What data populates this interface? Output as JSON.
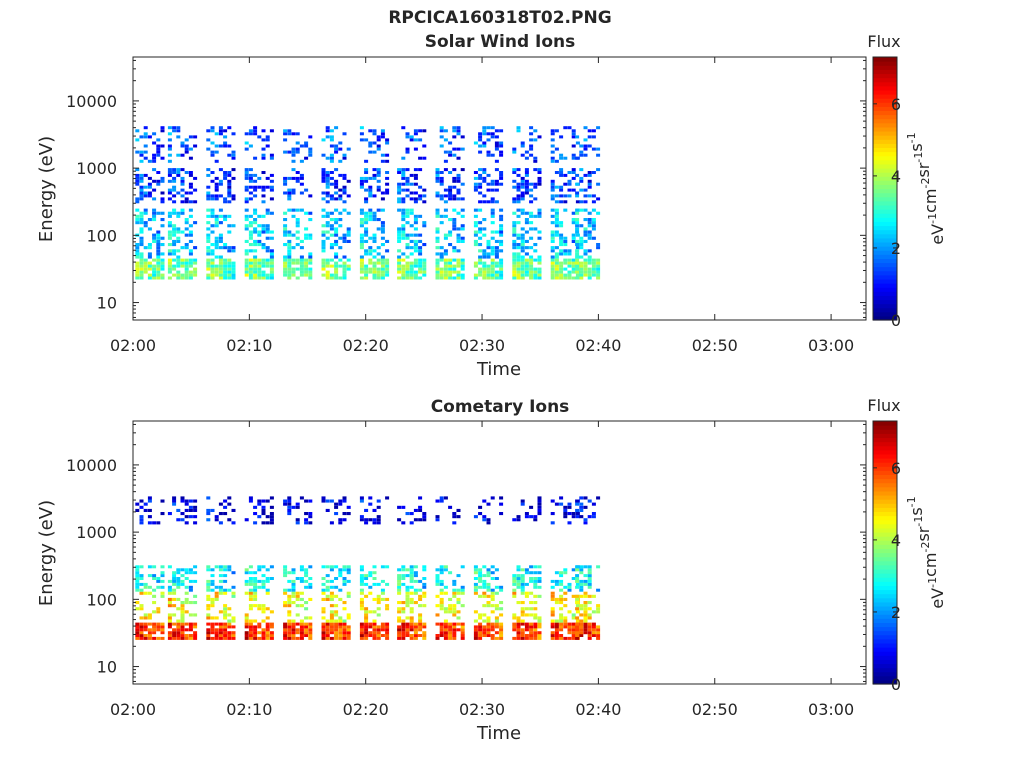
{
  "figure": {
    "file_title": "RPCICA160318T02.PNG"
  },
  "chart_data": [
    {
      "type": "heatmap",
      "title": "Solar Wind Ions",
      "xlabel": "Time",
      "ylabel": "Energy (eV)",
      "y_scale": "log",
      "x_range": [
        "02:00",
        "03:03"
      ],
      "y_range_ev": [
        5.5,
        45000
      ],
      "x_ticks": [
        "02:00",
        "02:10",
        "02:20",
        "02:30",
        "02:40",
        "02:50",
        "03:00"
      ],
      "y_ticks": [
        {
          "value": 10,
          "label": "10"
        },
        {
          "value": 100,
          "label": "100"
        },
        {
          "value": 1000,
          "label": "1000"
        },
        {
          "value": 10000,
          "label": "10000"
        }
      ],
      "colorbar": {
        "title": "Flux",
        "label": "eV⁻¹cm⁻²sr⁻¹s⁻¹",
        "label_parts": [
          "eV",
          "-1",
          "cm",
          "-2",
          "sr",
          "-1",
          "s",
          "-1"
        ],
        "range": [
          0,
          7.3
        ],
        "ticks": [
          0,
          2,
          4,
          6
        ],
        "colormap": "jet"
      },
      "grid": false,
      "data_extent": [
        "02:00",
        "02:40"
      ],
      "sweep_period_min": 3.35,
      "sweep_starts_min": [
        0.2,
        3.0,
        6.3,
        9.6,
        12.9,
        16.2,
        19.5,
        22.7,
        26.0,
        29.3,
        32.6,
        35.9,
        38.0
      ],
      "bands": [
        {
          "energy_ev": [
            22,
            45
          ],
          "typical_flux": 3.8
        },
        {
          "energy_ev": [
            45,
            250
          ],
          "typical_flux": 2.6
        },
        {
          "energy_ev": [
            300,
            1000
          ],
          "typical_flux": 1.6
        },
        {
          "energy_ev": [
            1200,
            4200
          ],
          "typical_flux": 1.8
        }
      ]
    },
    {
      "type": "heatmap",
      "title": "Cometary Ions",
      "xlabel": "Time",
      "ylabel": "Energy (eV)",
      "y_scale": "log",
      "x_range": [
        "02:00",
        "03:03"
      ],
      "y_range_ev": [
        5.5,
        45000
      ],
      "x_ticks": [
        "02:00",
        "02:10",
        "02:20",
        "02:30",
        "02:40",
        "02:50",
        "03:00"
      ],
      "y_ticks": [
        {
          "value": 10,
          "label": "10"
        },
        {
          "value": 100,
          "label": "100"
        },
        {
          "value": 1000,
          "label": "1000"
        },
        {
          "value": 10000,
          "label": "10000"
        }
      ],
      "colorbar": {
        "title": "Flux",
        "label": "eV⁻¹cm⁻²sr⁻¹s⁻¹",
        "label_parts": [
          "eV",
          "-1",
          "cm",
          "-2",
          "sr",
          "-1",
          "s",
          "-1"
        ],
        "range": [
          0,
          7.3
        ],
        "ticks": [
          0,
          2,
          4,
          6
        ],
        "colormap": "jet"
      },
      "grid": false,
      "data_extent": [
        "02:00",
        "02:40"
      ],
      "sweep_period_min": 3.35,
      "sweep_starts_min": [
        0.2,
        3.0,
        6.3,
        9.6,
        12.9,
        16.2,
        19.5,
        22.7,
        26.0,
        29.3,
        32.6,
        35.9,
        38.0
      ],
      "bands": [
        {
          "energy_ev": [
            25,
            45
          ],
          "typical_flux": 6.3
        },
        {
          "energy_ev": [
            45,
            130
          ],
          "typical_flux": 4.8
        },
        {
          "energy_ev": [
            130,
            320
          ],
          "typical_flux": 3.0
        },
        {
          "energy_ev": [
            1300,
            3400
          ],
          "typical_flux": 1.0
        }
      ]
    }
  ]
}
